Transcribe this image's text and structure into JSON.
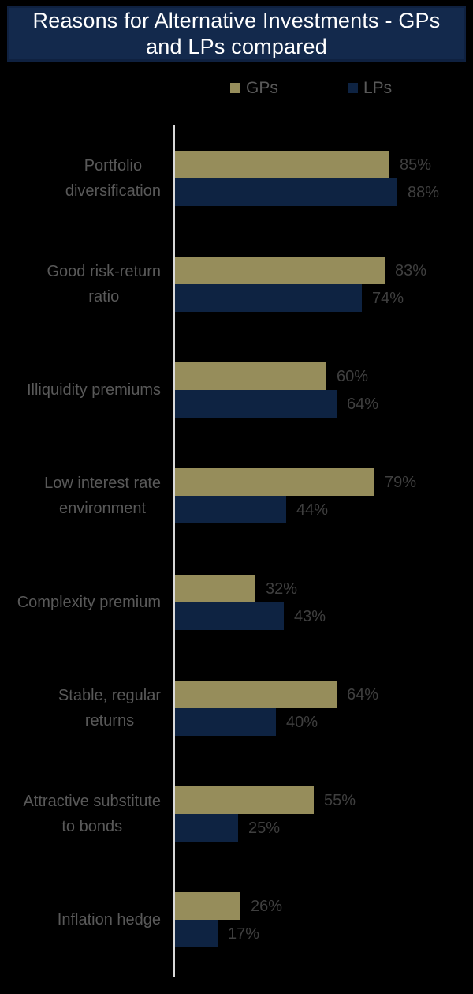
{
  "title": {
    "text": "Reasons for Alternative Investments - GPs and LPs compared",
    "line1": "Reasons for Alternative Investments - GPs",
    "line2": "and LPs compared"
  },
  "legend": {
    "position": "top",
    "items": [
      {
        "label": "GPs",
        "color": "#968D5B"
      },
      {
        "label": "LPs",
        "color": "#0E2342"
      }
    ]
  },
  "colors": {
    "background": "#000000",
    "title_bg": "#13294C",
    "title_border": "#0F2140",
    "title_text": "#FFFFFF",
    "gps_bar": "#968D5B",
    "lps_bar": "#0E2342",
    "axis_line": "#D9D9D9",
    "category_label": "#595959",
    "value_label": "#3F3F3F"
  },
  "chart_data": {
    "type": "bar",
    "orientation": "horizontal",
    "title": "Reasons for Alternative Investments - GPs and LPs compared",
    "categories": [
      "Portfolio diversification",
      "Good risk-return ratio",
      "Illiquidity premiums",
      "Low interest rate environment",
      "Complexity premium",
      "Stable, regular returns",
      "Attractive substitute to bonds",
      "Inflation hedge"
    ],
    "label_lines": [
      [
        "Portfolio",
        "diversification"
      ],
      [
        "Good risk-return",
        "ratio"
      ],
      [
        "Illiquidity premiums"
      ],
      [
        "Low interest rate",
        "environment"
      ],
      [
        "Complexity premium"
      ],
      [
        "Stable, regular",
        "returns"
      ],
      [
        "Attractive substitute",
        "to bonds"
      ],
      [
        "Inflation hedge"
      ]
    ],
    "series": [
      {
        "name": "GPs",
        "color": "#968D5B",
        "values": [
          85,
          83,
          60,
          79,
          32,
          64,
          55,
          26
        ]
      },
      {
        "name": "LPs",
        "color": "#0E2342",
        "values": [
          88,
          74,
          64,
          44,
          43,
          40,
          25,
          17
        ]
      }
    ],
    "value_suffix": "%",
    "data_labels": true,
    "xlim": [
      0,
      100
    ],
    "x_axis_ticks": "none",
    "grid": false,
    "legend_position": "top"
  }
}
